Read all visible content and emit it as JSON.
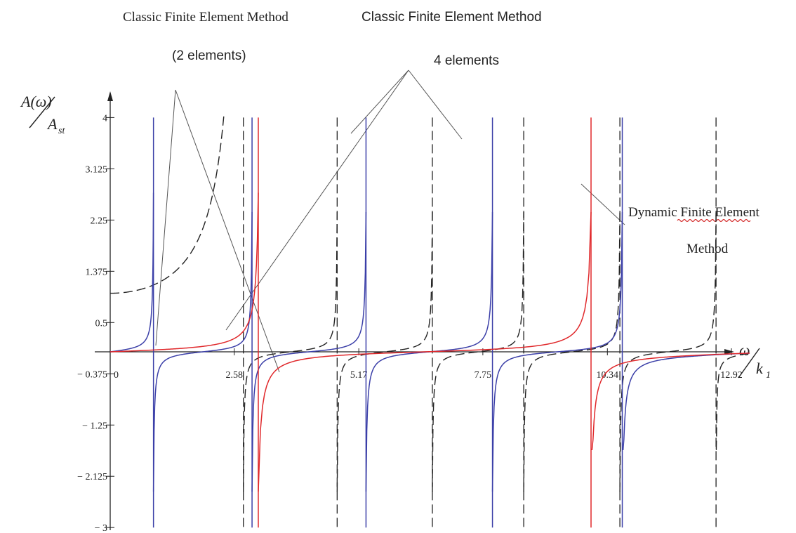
{
  "chart_data": {
    "type": "line",
    "ylabel": {
      "num": "A(ω)",
      "den": "A",
      "den_sub": "st"
    },
    "xlabel": {
      "num": "ω",
      "den": "k",
      "den_sub": "1"
    },
    "xlim": [
      0,
      13.6
    ],
    "ylim": [
      -3,
      4.6
    ],
    "x_ticks": [
      "2.58",
      "5.17",
      "7.75",
      "10.34",
      "12.92"
    ],
    "x_tick_values": [
      2.58,
      5.17,
      7.75,
      10.34,
      12.92
    ],
    "x_origin_label": "0",
    "y_ticks": [
      "4",
      "3.125",
      "2.25",
      "1.375",
      "0.5",
      "− 0.375",
      "− 1.25",
      "− 2.125",
      "− 3"
    ],
    "y_tick_values": [
      4,
      3.125,
      2.25,
      1.375,
      0.5,
      -0.375,
      -1.25,
      -2.125,
      -3
    ],
    "series": [
      {
        "style": "dashed",
        "color": "#222222",
        "resonances": [
          0,
          2.77,
          4.72,
          6.7,
          8.6,
          10.6,
          12.6
        ],
        "singular_first": true
      },
      {
        "style": "solid",
        "color": "#3b3fa8",
        "resonances": [
          0.9,
          2.95,
          5.32,
          7.95,
          10.65
        ]
      },
      {
        "style": "solid",
        "color": "#e0282b",
        "resonances": [
          3.08,
          10.0
        ]
      }
    ],
    "annotations": [
      {
        "id": "fem2",
        "lines": [
          "Classic Finite Element Method",
          "(2 elements)"
        ]
      },
      {
        "id": "fem4",
        "lines": [
          "Classic Finite Element Method",
          "4 elements"
        ]
      },
      {
        "id": "dfem",
        "lines": [
          "Dynamic Finite Element",
          "Method"
        ]
      }
    ]
  }
}
